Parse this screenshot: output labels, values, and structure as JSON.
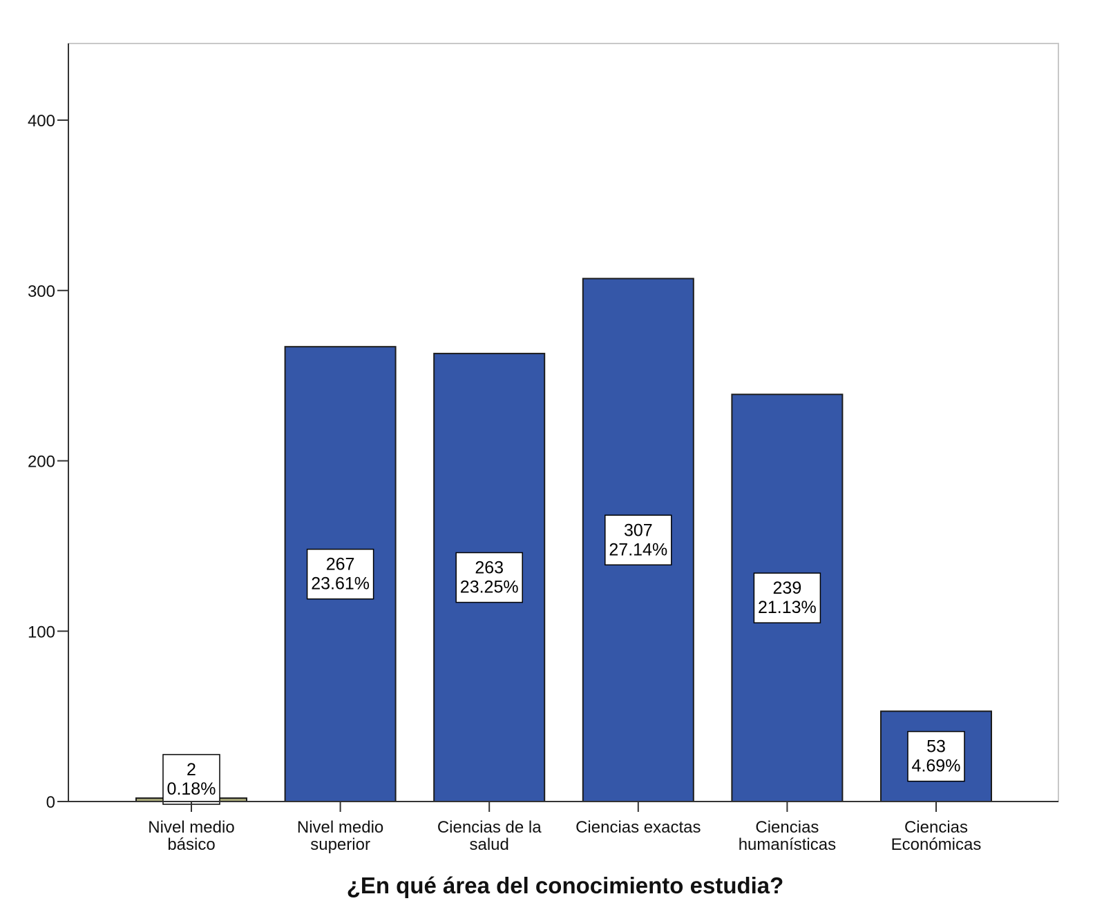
{
  "chart_data": {
    "type": "bar",
    "title": "",
    "xlabel": "¿En qué área del conocimiento estudia?",
    "ylabel": "",
    "ylim": [
      0,
      445
    ],
    "yticks": [
      0,
      100,
      200,
      300,
      400
    ],
    "grid": false,
    "categories": [
      [
        "Nivel medio",
        "básico"
      ],
      [
        "Nivel medio",
        "superior"
      ],
      [
        "Ciencias de la",
        "salud"
      ],
      [
        "Ciencias exactas"
      ],
      [
        "Ciencias",
        "humanísticas"
      ],
      [
        "Ciencias",
        "Económicas"
      ]
    ],
    "values": [
      2,
      267,
      263,
      307,
      239,
      53
    ],
    "percent_labels": [
      "0.18%",
      "23.61%",
      "23.25%",
      "27.14%",
      "21.13%",
      "4.69%"
    ],
    "colors": {
      "bar": "#3557a8",
      "bar_edge": "#1c1c1c",
      "first_bar": "#a8a878",
      "frame": "#c8c8c8",
      "axis": "#333333"
    }
  }
}
